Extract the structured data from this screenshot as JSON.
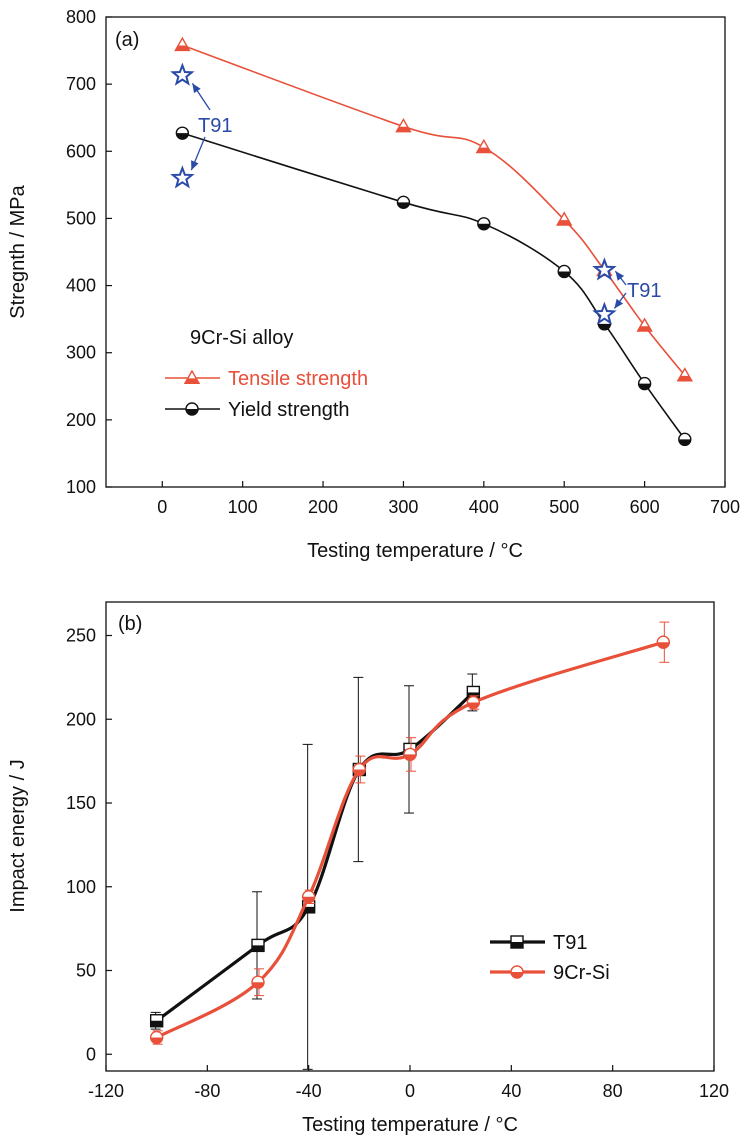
{
  "chart_data": [
    {
      "panel_label": "(a)",
      "type": "line",
      "xlabel": "Testing temperature / °C",
      "ylabel": "Stregnth / MPa",
      "xlim": [
        -70,
        700
      ],
      "ylim": [
        100,
        800
      ],
      "xticks": [
        0,
        100,
        200,
        300,
        400,
        500,
        600,
        700
      ],
      "yticks": [
        100,
        200,
        300,
        400,
        500,
        600,
        700,
        800
      ],
      "grid": false,
      "legend_title": "9Cr-Si alloy",
      "legend_position": "lower-left",
      "series": [
        {
          "name": "Tensile strength",
          "color": "#e8503a",
          "marker": "triangle",
          "x": [
            25,
            300,
            400,
            500,
            550,
            600,
            650
          ],
          "y": [
            758,
            637,
            606,
            498,
            423,
            340,
            266
          ]
        },
        {
          "name": "Yield strength",
          "color": "#111111",
          "marker": "half-filled-circle",
          "x": [
            25,
            300,
            400,
            500,
            550,
            600,
            650
          ],
          "y": [
            627,
            524,
            492,
            421,
            343,
            254,
            171
          ]
        }
      ],
      "reference_points": {
        "label": "T91",
        "color": "#2a4aa8",
        "marker": "star",
        "x": [
          25,
          25,
          550,
          550
        ],
        "y": [
          713,
          560,
          423,
          357
        ]
      },
      "annotations": [
        {
          "text": "T91",
          "color": "#2a4aa8"
        },
        {
          "text": "T91",
          "color": "#2a4aa8"
        }
      ]
    },
    {
      "panel_label": "(b)",
      "type": "line",
      "xlabel": "Testing temperature / °C",
      "ylabel": "Impact energy / J",
      "xlim": [
        -120,
        120
      ],
      "ylim": [
        -10,
        270
      ],
      "xticks": [
        -120,
        -80,
        -40,
        0,
        40,
        80,
        120
      ],
      "yticks": [
        0,
        50,
        100,
        150,
        200,
        250
      ],
      "grid": false,
      "legend_position": "lower-right",
      "series": [
        {
          "name": "T91",
          "color": "#111111",
          "marker": "half-filled-square",
          "x": [
            -100,
            -60,
            -40,
            -20,
            0,
            25
          ],
          "y": [
            20,
            65,
            88,
            170,
            182,
            216
          ],
          "error": [
            5,
            32,
            97,
            55,
            38,
            11
          ]
        },
        {
          "name": "9Cr-Si",
          "color": "#e8503a",
          "marker": "half-filled-circle",
          "x": [
            -100,
            -60,
            -40,
            -20,
            0,
            25,
            100
          ],
          "y": [
            10,
            43,
            94,
            170,
            179,
            210,
            246
          ],
          "error": [
            4,
            8,
            4,
            8,
            10,
            4,
            12
          ]
        }
      ]
    }
  ]
}
